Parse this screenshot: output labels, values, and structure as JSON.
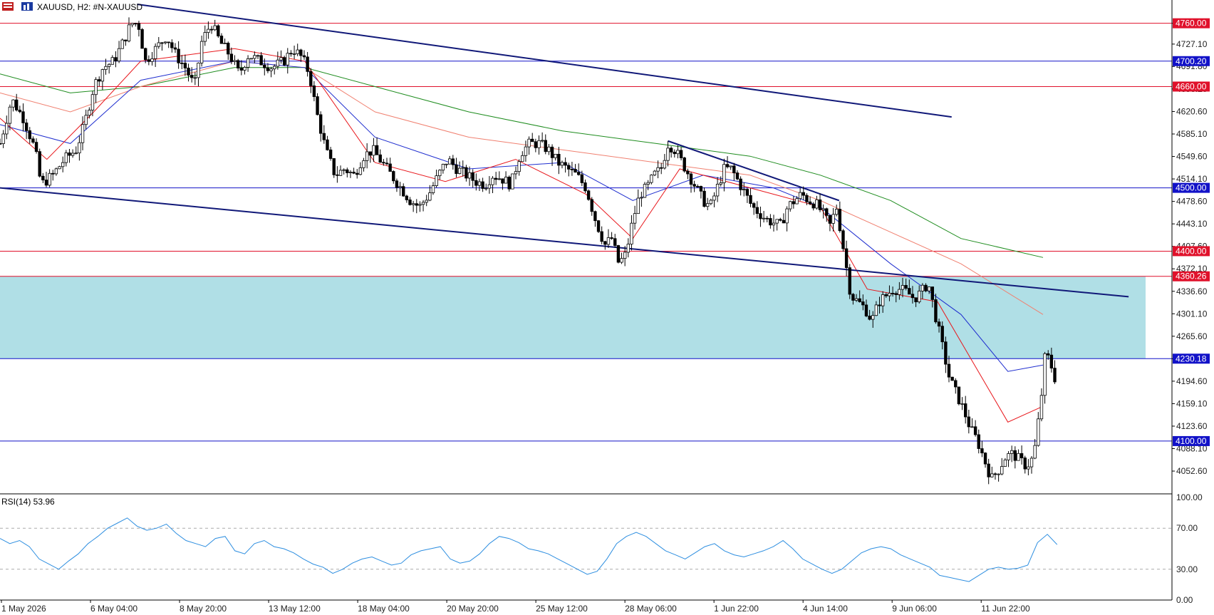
{
  "header": {
    "symbol_text": "XAUUSD, H2:  #N-XAUUSD"
  },
  "rsi": {
    "label": "RSI(14) 53.96"
  },
  "colors": {
    "bull_body": "#ffffff",
    "bear_body": "#000000",
    "wick": "#000000",
    "ema_fast": "#e8161b",
    "ema_mid": "#1f2ecf",
    "ema_slow": "#f08070",
    "ema_long": "#1e8c1e",
    "zone": "#b0dfe6",
    "red_level": "#e0112b",
    "blue_level": "#1212c8",
    "trendline": "#101878",
    "rsi_line": "#2d8ee0"
  },
  "chart_data": [
    {
      "type": "candlestick",
      "symbol": "XAUUSD",
      "timeframe": "H2",
      "ylim": [
        4020,
        4790
      ],
      "y_ticks": [
        "4760.00",
        "4727.10",
        "4691.80",
        "4656.20",
        "4620.60",
        "4585.10",
        "4549.60",
        "4514.10",
        "4478.60",
        "4443.10",
        "4407.60",
        "4372.10",
        "4336.60",
        "4301.10",
        "4265.60",
        "4230.00",
        "4194.60",
        "4159.10",
        "4123.60",
        "4088.10",
        "4052.60"
      ],
      "x_tick_labels": [
        "1 May 2026",
        "6 May 04:00",
        "8 May 20:00",
        "13 May 12:00",
        "18 May 04:00",
        "20 May 20:00",
        "25 May 12:00",
        "28 May 06:00",
        "1 Jun 22:00",
        "4 Jun 14:00",
        "9 Jun 06:00",
        "11 Jun 22:00"
      ],
      "levels": [
        {
          "value": 4760.0,
          "label": "4760.00",
          "style": "red"
        },
        {
          "value": 4700.2,
          "label": "4700.20",
          "style": "blue"
        },
        {
          "value": 4660.0,
          "label": "4660.00",
          "style": "red"
        },
        {
          "value": 4500.0,
          "label": "4500.00",
          "style": "blue"
        },
        {
          "value": 4400.0,
          "label": "4400.00",
          "style": "red"
        },
        {
          "value": 4360.26,
          "label": "4360.26",
          "style": "red"
        },
        {
          "value": 4230.18,
          "label": "4230.18",
          "style": "blue"
        },
        {
          "value": 4100.0,
          "label": "4100.00",
          "style": "blue"
        }
      ],
      "zone": {
        "top": 4360.26,
        "bottom": 4230.18
      },
      "trendlines": [
        {
          "name": "upper-channel",
          "from": [
            0.117,
            4790
          ],
          "to": [
            0.812,
            4612
          ]
        },
        {
          "name": "lower-channel",
          "from": [
            0.0,
            4500
          ],
          "to": [
            0.963,
            4328
          ]
        },
        {
          "name": "short-resistance",
          "from": [
            0.57,
            4574
          ],
          "to": [
            0.716,
            4480
          ]
        }
      ],
      "price_path": [
        [
          0.0,
          4570
        ],
        [
          0.01,
          4640
        ],
        [
          0.02,
          4610
        ],
        [
          0.03,
          4560
        ],
        [
          0.035,
          4505
        ],
        [
          0.045,
          4520
        ],
        [
          0.055,
          4545
        ],
        [
          0.065,
          4560
        ],
        [
          0.072,
          4600
        ],
        [
          0.08,
          4660
        ],
        [
          0.088,
          4690
        ],
        [
          0.097,
          4700
        ],
        [
          0.105,
          4730
        ],
        [
          0.112,
          4760
        ],
        [
          0.118,
          4760
        ],
        [
          0.124,
          4700
        ],
        [
          0.133,
          4720
        ],
        [
          0.142,
          4740
        ],
        [
          0.15,
          4710
        ],
        [
          0.158,
          4690
        ],
        [
          0.166,
          4660
        ],
        [
          0.172,
          4730
        ],
        [
          0.18,
          4760
        ],
        [
          0.188,
          4730
        ],
        [
          0.196,
          4710
        ],
        [
          0.204,
          4680
        ],
        [
          0.212,
          4710
        ],
        [
          0.222,
          4700
        ],
        [
          0.232,
          4690
        ],
        [
          0.242,
          4700
        ],
        [
          0.25,
          4720
        ],
        [
          0.258,
          4705
        ],
        [
          0.264,
          4680
        ],
        [
          0.27,
          4620
        ],
        [
          0.278,
          4560
        ],
        [
          0.286,
          4520
        ],
        [
          0.294,
          4530
        ],
        [
          0.302,
          4520
        ],
        [
          0.31,
          4550
        ],
        [
          0.318,
          4560
        ],
        [
          0.326,
          4540
        ],
        [
          0.334,
          4520
        ],
        [
          0.342,
          4500
        ],
        [
          0.35,
          4480
        ],
        [
          0.358,
          4470
        ],
        [
          0.366,
          4490
        ],
        [
          0.374,
          4520
        ],
        [
          0.382,
          4545
        ],
        [
          0.39,
          4530
        ],
        [
          0.398,
          4520
        ],
        [
          0.406,
          4510
        ],
        [
          0.414,
          4505
        ],
        [
          0.42,
          4520
        ],
        [
          0.428,
          4515
        ],
        [
          0.436,
          4505
        ],
        [
          0.444,
          4555
        ],
        [
          0.452,
          4570
        ],
        [
          0.46,
          4570
        ],
        [
          0.468,
          4560
        ],
        [
          0.476,
          4540
        ],
        [
          0.484,
          4530
        ],
        [
          0.492,
          4520
        ],
        [
          0.5,
          4500
        ],
        [
          0.508,
          4450
        ],
        [
          0.516,
          4410
        ],
        [
          0.522,
          4420
        ],
        [
          0.528,
          4380
        ],
        [
          0.534,
          4395
        ],
        [
          0.54,
          4450
        ],
        [
          0.546,
          4490
        ],
        [
          0.552,
          4500
        ],
        [
          0.558,
          4520
        ],
        [
          0.564,
          4530
        ],
        [
          0.57,
          4570
        ],
        [
          0.576,
          4560
        ],
        [
          0.582,
          4540
        ],
        [
          0.588,
          4520
        ],
        [
          0.594,
          4500
        ],
        [
          0.6,
          4480
        ],
        [
          0.606,
          4470
        ],
        [
          0.612,
          4500
        ],
        [
          0.618,
          4530
        ],
        [
          0.624,
          4530
        ],
        [
          0.63,
          4510
        ],
        [
          0.636,
          4490
        ],
        [
          0.642,
          4470
        ],
        [
          0.648,
          4460
        ],
        [
          0.654,
          4450
        ],
        [
          0.66,
          4445
        ],
        [
          0.666,
          4440
        ],
        [
          0.672,
          4470
        ],
        [
          0.678,
          4480
        ],
        [
          0.684,
          4490
        ],
        [
          0.69,
          4480
        ],
        [
          0.696,
          4475
        ],
        [
          0.702,
          4460
        ],
        [
          0.708,
          4440
        ],
        [
          0.714,
          4470
        ],
        [
          0.72,
          4400
        ],
        [
          0.726,
          4330
        ],
        [
          0.732,
          4320
        ],
        [
          0.738,
          4310
        ],
        [
          0.744,
          4290
        ],
        [
          0.75,
          4320
        ],
        [
          0.756,
          4330
        ],
        [
          0.762,
          4340
        ],
        [
          0.768,
          4340
        ],
        [
          0.774,
          4335
        ],
        [
          0.78,
          4325
        ],
        [
          0.786,
          4335
        ],
        [
          0.792,
          4350
        ],
        [
          0.798,
          4300
        ],
        [
          0.804,
          4250
        ],
        [
          0.81,
          4200
        ],
        [
          0.816,
          4175
        ],
        [
          0.822,
          4150
        ],
        [
          0.828,
          4120
        ],
        [
          0.834,
          4100
        ],
        [
          0.84,
          4070
        ],
        [
          0.846,
          4040
        ],
        [
          0.852,
          4055
        ],
        [
          0.858,
          4075
        ],
        [
          0.864,
          4080
        ],
        [
          0.87,
          4070
        ],
        [
          0.876,
          4060
        ],
        [
          0.882,
          4075
        ],
        [
          0.888,
          4160
        ],
        [
          0.892,
          4240
        ],
        [
          0.896,
          4225
        ],
        [
          0.9,
          4200
        ]
      ],
      "ema_paths": {
        "ema_long": [
          [
            0.0,
            4680
          ],
          [
            0.06,
            4650
          ],
          [
            0.12,
            4660
          ],
          [
            0.2,
            4690
          ],
          [
            0.26,
            4690
          ],
          [
            0.32,
            4660
          ],
          [
            0.4,
            4620
          ],
          [
            0.48,
            4590
          ],
          [
            0.56,
            4570
          ],
          [
            0.64,
            4550
          ],
          [
            0.7,
            4520
          ],
          [
            0.76,
            4480
          ],
          [
            0.82,
            4420
          ],
          [
            0.89,
            4390
          ]
        ],
        "ema_slow": [
          [
            0.0,
            4650
          ],
          [
            0.06,
            4620
          ],
          [
            0.12,
            4660
          ],
          [
            0.2,
            4700
          ],
          [
            0.26,
            4690
          ],
          [
            0.32,
            4620
          ],
          [
            0.4,
            4580
          ],
          [
            0.48,
            4560
          ],
          [
            0.56,
            4540
          ],
          [
            0.64,
            4520
          ],
          [
            0.7,
            4480
          ],
          [
            0.76,
            4430
          ],
          [
            0.82,
            4380
          ],
          [
            0.89,
            4300
          ]
        ],
        "ema_mid": [
          [
            0.0,
            4600
          ],
          [
            0.06,
            4570
          ],
          [
            0.12,
            4670
          ],
          [
            0.2,
            4700
          ],
          [
            0.26,
            4690
          ],
          [
            0.32,
            4580
          ],
          [
            0.4,
            4530
          ],
          [
            0.48,
            4540
          ],
          [
            0.54,
            4480
          ],
          [
            0.6,
            4520
          ],
          [
            0.66,
            4500
          ],
          [
            0.7,
            4470
          ],
          [
            0.76,
            4380
          ],
          [
            0.82,
            4300
          ],
          [
            0.86,
            4210
          ],
          [
            0.89,
            4220
          ]
        ],
        "ema_fast": [
          [
            0.0,
            4610
          ],
          [
            0.04,
            4545
          ],
          [
            0.08,
            4620
          ],
          [
            0.12,
            4700
          ],
          [
            0.2,
            4720
          ],
          [
            0.26,
            4700
          ],
          [
            0.32,
            4540
          ],
          [
            0.38,
            4510
          ],
          [
            0.44,
            4545
          ],
          [
            0.5,
            4490
          ],
          [
            0.54,
            4420
          ],
          [
            0.58,
            4530
          ],
          [
            0.64,
            4500
          ],
          [
            0.7,
            4470
          ],
          [
            0.74,
            4340
          ],
          [
            0.8,
            4320
          ],
          [
            0.86,
            4130
          ],
          [
            0.89,
            4155
          ]
        ]
      }
    },
    {
      "type": "line",
      "name": "RSI(14)",
      "value": 53.96,
      "ylim": [
        0,
        100
      ],
      "y_ticks": [
        "100.00",
        "70.00",
        "30.00",
        "0.00"
      ],
      "levels": [
        70,
        30
      ],
      "values": [
        60,
        55,
        58,
        52,
        40,
        35,
        30,
        38,
        45,
        55,
        62,
        70,
        75,
        80,
        72,
        68,
        70,
        74,
        65,
        58,
        55,
        52,
        60,
        62,
        48,
        45,
        55,
        58,
        52,
        50,
        46,
        40,
        35,
        32,
        26,
        30,
        36,
        40,
        42,
        38,
        34,
        36,
        44,
        48,
        50,
        52,
        40,
        36,
        38,
        45,
        55,
        62,
        60,
        56,
        50,
        48,
        45,
        40,
        35,
        30,
        25,
        28,
        40,
        55,
        62,
        66,
        62,
        55,
        48,
        44,
        40,
        46,
        52,
        55,
        48,
        44,
        42,
        45,
        48,
        52,
        58,
        50,
        40,
        35,
        30,
        26,
        30,
        38,
        46,
        50,
        52,
        50,
        44,
        40,
        36,
        32,
        24,
        22,
        20,
        18,
        24,
        30,
        32,
        30,
        31,
        34,
        56,
        64,
        54
      ]
    }
  ]
}
